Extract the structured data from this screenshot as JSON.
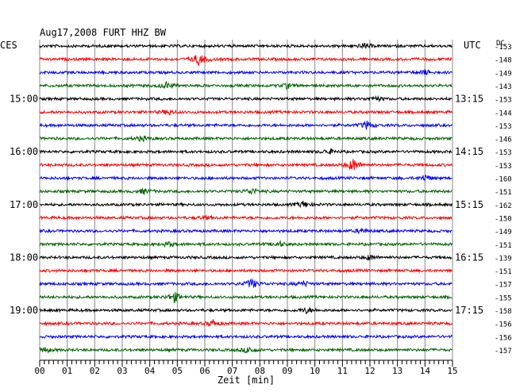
{
  "chart_data": {
    "type": "line",
    "title": "Aug17,2008   FURT HHZ BW",
    "left_label": "CES",
    "right_label": "UTC",
    "dc_label": "DC",
    "xlabel": "Zeit [min]",
    "xlim": [
      0,
      15
    ],
    "x_ticks": [
      "00",
      "01",
      "02",
      "03",
      "04",
      "05",
      "06",
      "07",
      "08",
      "09",
      "10",
      "11",
      "12",
      "13",
      "14",
      "15"
    ],
    "left_time_labels": [
      {
        "row": 4,
        "text": "15:00"
      },
      {
        "row": 8,
        "text": "16:00"
      },
      {
        "row": 12,
        "text": "17:00"
      },
      {
        "row": 16,
        "text": "18:00"
      },
      {
        "row": 20,
        "text": "19:00"
      }
    ],
    "right_time_labels": [
      {
        "row": 4,
        "text": "13:15"
      },
      {
        "row": 8,
        "text": "14:15"
      },
      {
        "row": 12,
        "text": "15:15"
      },
      {
        "row": 16,
        "text": "16:15"
      },
      {
        "row": 20,
        "text": "17:15"
      }
    ],
    "row_colors": [
      "#000000",
      "#ff0000",
      "#0000ff",
      "#006400"
    ],
    "dc_values": [
      "-153",
      "-148",
      "-149",
      "-143",
      "-153",
      "-144",
      "-153",
      "-146",
      "-153",
      "-153",
      "-160",
      "-151",
      "-162",
      "-150",
      "-149",
      "-151",
      "-139",
      "-151",
      "-157",
      "-155",
      "-158",
      "-156",
      "-156",
      "-157"
    ],
    "events": [
      {
        "row": 0,
        "minute": 11.8,
        "amp": 3
      },
      {
        "row": 1,
        "minute": 5.8,
        "amp": 8
      },
      {
        "row": 2,
        "minute": 14.0,
        "amp": 3
      },
      {
        "row": 3,
        "minute": 4.6,
        "amp": 4
      },
      {
        "row": 3,
        "minute": 9.0,
        "amp": 3
      },
      {
        "row": 4,
        "minute": 12.2,
        "amp": 3
      },
      {
        "row": 5,
        "minute": 4.7,
        "amp": 3
      },
      {
        "row": 6,
        "minute": 11.9,
        "amp": 5
      },
      {
        "row": 7,
        "minute": 3.7,
        "amp": 3
      },
      {
        "row": 8,
        "minute": 10.5,
        "amp": 3
      },
      {
        "row": 9,
        "minute": 11.4,
        "amp": 8
      },
      {
        "row": 10,
        "minute": 14.0,
        "amp": 4
      },
      {
        "row": 11,
        "minute": 3.8,
        "amp": 3
      },
      {
        "row": 11,
        "minute": 7.7,
        "amp": 4
      },
      {
        "row": 12,
        "minute": 9.6,
        "amp": 4
      },
      {
        "row": 13,
        "minute": 6.0,
        "amp": 2
      },
      {
        "row": 14,
        "minute": 11.7,
        "amp": 3
      },
      {
        "row": 15,
        "minute": 4.7,
        "amp": 3
      },
      {
        "row": 15,
        "minute": 8.7,
        "amp": 3
      },
      {
        "row": 16,
        "minute": 12.0,
        "amp": 3
      },
      {
        "row": 18,
        "minute": 7.7,
        "amp": 6
      },
      {
        "row": 18,
        "minute": 9.6,
        "amp": 3
      },
      {
        "row": 19,
        "minute": 4.9,
        "amp": 6
      },
      {
        "row": 20,
        "minute": 9.7,
        "amp": 3
      },
      {
        "row": 21,
        "minute": 6.3,
        "amp": 4
      },
      {
        "row": 23,
        "minute": 7.6,
        "amp": 4
      },
      {
        "row": 23,
        "minute": 0.2,
        "amp": 3
      }
    ]
  }
}
